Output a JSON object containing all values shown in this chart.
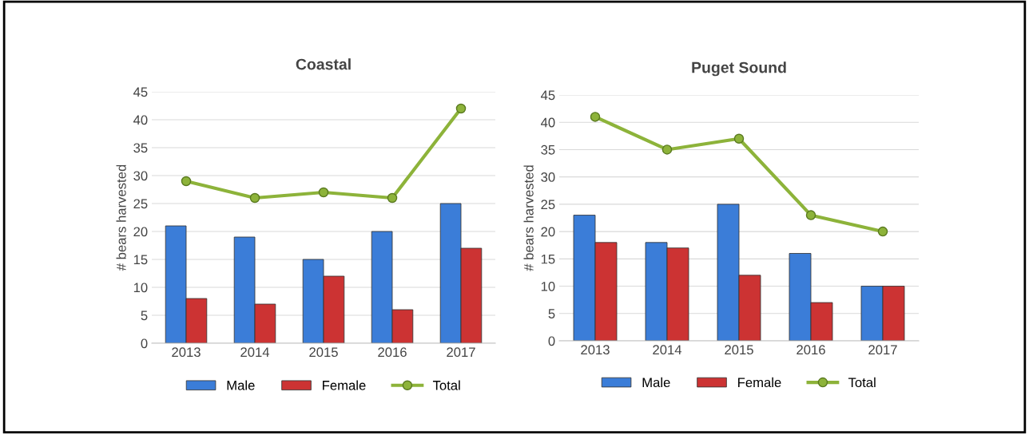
{
  "chart_data": [
    {
      "type": "bar",
      "title": "Coastal",
      "ylabel": "# bears harvested",
      "categories": [
        "2013",
        "2014",
        "2015",
        "2016",
        "2017"
      ],
      "series": [
        {
          "name": "Male",
          "color": "#3b7dd8",
          "values": [
            21,
            19,
            15,
            20,
            25
          ]
        },
        {
          "name": "Female",
          "color": "#cc3333",
          "values": [
            8,
            7,
            12,
            6,
            17
          ]
        },
        {
          "name": "Total",
          "type": "line",
          "color": "#8db33a",
          "values": [
            29,
            26,
            27,
            26,
            42
          ]
        }
      ],
      "ylim": [
        0,
        45
      ],
      "yticks": [
        0,
        5,
        10,
        15,
        20,
        25,
        30,
        35,
        40,
        45
      ],
      "grid": "y",
      "legend": "bottom",
      "marker": "circle"
    },
    {
      "type": "bar",
      "title": "Puget Sound",
      "ylabel": "# bears harvested",
      "categories": [
        "2013",
        "2014",
        "2015",
        "2016",
        "2017"
      ],
      "series": [
        {
          "name": "Male",
          "color": "#3b7dd8",
          "values": [
            23,
            18,
            25,
            16,
            10
          ]
        },
        {
          "name": "Female",
          "color": "#cc3333",
          "values": [
            18,
            17,
            12,
            7,
            10
          ]
        },
        {
          "name": "Total",
          "type": "line",
          "color": "#8db33a",
          "values": [
            41,
            35,
            37,
            23,
            20
          ]
        }
      ],
      "ylim": [
        0,
        45
      ],
      "yticks": [
        0,
        5,
        10,
        15,
        20,
        25,
        30,
        35,
        40,
        45
      ],
      "grid": "y",
      "legend": "bottom",
      "marker": "circle"
    }
  ]
}
